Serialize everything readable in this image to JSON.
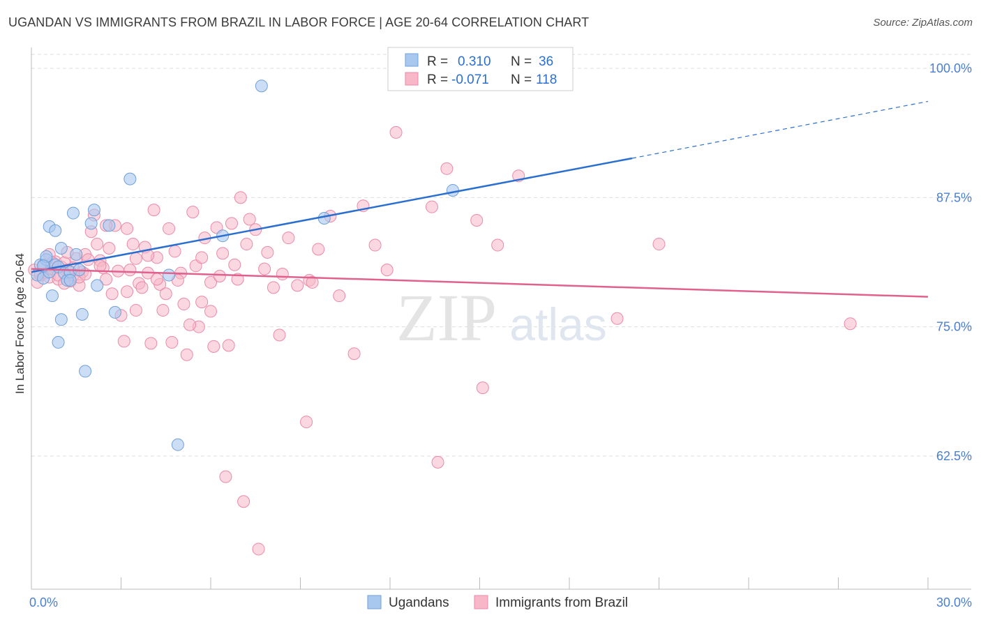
{
  "header": {
    "title": "UGANDAN VS IMMIGRANTS FROM BRAZIL IN LABOR FORCE | AGE 20-64 CORRELATION CHART",
    "source": "Source: ZipAtlas.com"
  },
  "watermark": {
    "zip": "ZIP",
    "atlas": "atlas"
  },
  "colors": {
    "blue_fill": "#a8c8f0",
    "blue_stroke": "#6f9fd8",
    "blue_line": "#2a6fd0",
    "pink_fill": "#f7b7c8",
    "pink_stroke": "#e98aa6",
    "pink_line": "#e0608e",
    "tick_text": "#4a7fd0",
    "grid": "#dddddd"
  },
  "stats": {
    "rows": [
      {
        "r_label": "R =",
        "r_value": "0.310",
        "n_label": "N =",
        "n_value": "36"
      },
      {
        "r_label": "R =",
        "r_value": "-0.071",
        "n_label": "N =",
        "n_value": "118"
      }
    ]
  },
  "chart_data": {
    "type": "scatter",
    "title": "UGANDAN VS IMMIGRANTS FROM BRAZIL IN LABOR FORCE | AGE 20-64 CORRELATION CHART",
    "xlabel": "",
    "ylabel": "In Labor Force | Age 20-64",
    "xlim": [
      0,
      30
    ],
    "ylim": [
      50,
      102.5
    ],
    "x_tick_labels": [
      "0.0%",
      "30.0%"
    ],
    "y_ticks": [
      62.5,
      75.0,
      87.5,
      100.0
    ],
    "y_tick_labels": [
      "62.5%",
      "75.0%",
      "87.5%",
      "100.0%"
    ],
    "grid": true,
    "legend_position": "bottom",
    "series": [
      {
        "name": "Ugandans",
        "color": "#a8c8f0",
        "r": 0.31,
        "n": 36,
        "trend": {
          "x0": 0,
          "y0": 80.3,
          "x1": 20.1,
          "y1": 91.3,
          "x_dash_end": 30,
          "y_dash_end": 96.8
        },
        "points": [
          [
            0.2,
            80.0
          ],
          [
            0.3,
            81.0
          ],
          [
            0.4,
            79.7
          ],
          [
            0.5,
            81.5
          ],
          [
            0.6,
            80.3
          ],
          [
            0.8,
            81.0
          ],
          [
            0.9,
            80.8
          ],
          [
            1.1,
            80.2
          ],
          [
            1.2,
            79.5
          ],
          [
            0.7,
            78.0
          ],
          [
            1.3,
            80.3
          ],
          [
            0.5,
            81.8
          ],
          [
            1.0,
            75.7
          ],
          [
            0.9,
            73.5
          ],
          [
            1.5,
            82.0
          ],
          [
            1.4,
            86.0
          ],
          [
            1.7,
            76.2
          ],
          [
            1.8,
            70.7
          ],
          [
            2.2,
            79.0
          ],
          [
            2.0,
            85.0
          ],
          [
            2.1,
            86.3
          ],
          [
            2.6,
            84.8
          ],
          [
            2.8,
            76.4
          ],
          [
            3.3,
            89.3
          ],
          [
            4.6,
            80.0
          ],
          [
            4.9,
            63.6
          ],
          [
            6.4,
            83.8
          ],
          [
            7.7,
            98.3
          ],
          [
            9.8,
            85.5
          ],
          [
            14.1,
            88.2
          ],
          [
            0.6,
            84.7
          ],
          [
            1.0,
            82.6
          ],
          [
            1.3,
            79.5
          ],
          [
            1.6,
            80.5
          ],
          [
            0.4,
            80.9
          ],
          [
            0.8,
            84.3
          ]
        ]
      },
      {
        "name": "Immigrants from Brazil",
        "color": "#f7b7c8",
        "r": -0.071,
        "n": 118,
        "trend": {
          "x0": 0,
          "y0": 80.6,
          "x1": 30,
          "y1": 77.9
        },
        "points": [
          [
            0.1,
            80.5
          ],
          [
            0.2,
            79.3
          ],
          [
            0.3,
            80.0
          ],
          [
            0.4,
            81.0
          ],
          [
            0.5,
            80.2
          ],
          [
            0.6,
            79.8
          ],
          [
            0.7,
            80.6
          ],
          [
            0.8,
            81.3
          ],
          [
            0.9,
            79.6
          ],
          [
            1.0,
            80.8
          ],
          [
            1.1,
            81.2
          ],
          [
            1.2,
            80.5
          ],
          [
            1.3,
            79.4
          ],
          [
            1.4,
            80.0
          ],
          [
            1.5,
            81.6
          ],
          [
            1.6,
            79.0
          ],
          [
            1.7,
            80.3
          ],
          [
            1.8,
            82.0
          ],
          [
            1.9,
            81.5
          ],
          [
            2.0,
            84.2
          ],
          [
            2.1,
            85.8
          ],
          [
            2.2,
            83.0
          ],
          [
            2.3,
            81.4
          ],
          [
            2.4,
            80.7
          ],
          [
            2.5,
            79.6
          ],
          [
            2.6,
            82.6
          ],
          [
            2.7,
            78.2
          ],
          [
            2.8,
            84.8
          ],
          [
            2.9,
            80.4
          ],
          [
            3.0,
            76.1
          ],
          [
            3.1,
            73.6
          ],
          [
            3.2,
            78.4
          ],
          [
            3.3,
            80.5
          ],
          [
            3.4,
            83.0
          ],
          [
            3.5,
            81.6
          ],
          [
            3.6,
            79.2
          ],
          [
            3.7,
            78.8
          ],
          [
            3.8,
            82.7
          ],
          [
            3.9,
            80.2
          ],
          [
            4.0,
            73.4
          ],
          [
            4.1,
            86.3
          ],
          [
            4.2,
            81.7
          ],
          [
            4.3,
            79.1
          ],
          [
            4.4,
            76.6
          ],
          [
            4.5,
            78.2
          ],
          [
            4.6,
            84.5
          ],
          [
            4.8,
            82.3
          ],
          [
            5.0,
            80.2
          ],
          [
            5.1,
            77.2
          ],
          [
            5.2,
            72.3
          ],
          [
            5.4,
            86.1
          ],
          [
            5.5,
            80.9
          ],
          [
            5.6,
            75.0
          ],
          [
            5.7,
            81.7
          ],
          [
            5.8,
            83.6
          ],
          [
            6.0,
            79.3
          ],
          [
            6.1,
            73.1
          ],
          [
            6.2,
            84.6
          ],
          [
            6.3,
            79.9
          ],
          [
            6.4,
            82.1
          ],
          [
            6.5,
            60.5
          ],
          [
            6.6,
            73.2
          ],
          [
            6.7,
            85.0
          ],
          [
            6.9,
            79.6
          ],
          [
            7.0,
            87.5
          ],
          [
            7.1,
            58.1
          ],
          [
            7.3,
            85.4
          ],
          [
            7.5,
            84.4
          ],
          [
            7.6,
            53.5
          ],
          [
            7.8,
            80.6
          ],
          [
            8.1,
            78.8
          ],
          [
            8.3,
            74.2
          ],
          [
            8.6,
            83.6
          ],
          [
            9.2,
            65.8
          ],
          [
            9.3,
            79.5
          ],
          [
            9.6,
            82.5
          ],
          [
            10.0,
            85.7
          ],
          [
            10.8,
            72.4
          ],
          [
            11.1,
            86.7
          ],
          [
            11.5,
            82.9
          ],
          [
            11.9,
            80.5
          ],
          [
            12.2,
            93.8
          ],
          [
            13.4,
            86.6
          ],
          [
            13.6,
            61.9
          ],
          [
            13.9,
            90.3
          ],
          [
            14.9,
            85.3
          ],
          [
            15.1,
            69.1
          ],
          [
            15.6,
            82.9
          ],
          [
            16.3,
            89.6
          ],
          [
            19.6,
            75.8
          ],
          [
            21.0,
            83.0
          ],
          [
            27.4,
            75.3
          ],
          [
            0.6,
            82.0
          ],
          [
            0.7,
            81.2
          ],
          [
            0.9,
            80.0
          ],
          [
            1.1,
            79.2
          ],
          [
            1.2,
            82.2
          ],
          [
            1.4,
            80.7
          ],
          [
            1.6,
            79.8
          ],
          [
            1.8,
            80.1
          ],
          [
            2.3,
            80.9
          ],
          [
            2.5,
            84.8
          ],
          [
            3.2,
            84.5
          ],
          [
            3.5,
            76.6
          ],
          [
            3.9,
            81.9
          ],
          [
            4.2,
            79.6
          ],
          [
            4.9,
            79.5
          ],
          [
            5.3,
            75.2
          ],
          [
            5.7,
            77.4
          ],
          [
            6.0,
            76.5
          ],
          [
            6.8,
            81.0
          ],
          [
            7.2,
            83.0
          ],
          [
            7.9,
            82.2
          ],
          [
            8.4,
            80.1
          ],
          [
            8.9,
            79.0
          ],
          [
            9.4,
            79.3
          ],
          [
            10.3,
            78.0
          ],
          [
            4.7,
            73.5
          ]
        ]
      }
    ]
  }
}
